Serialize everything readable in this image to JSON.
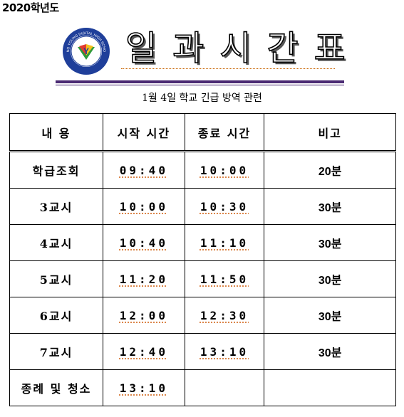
{
  "year": "2020학년도",
  "title": "일과시간표",
  "subtitle": "1월 4일 학교 긴급 방역 관련",
  "logo": {
    "icon": "school-emblem-icon",
    "text": "YANG YOUNG DIGITAL HIGH SCHOOL",
    "colors": [
      "#1f3f9a",
      "#e23b2e",
      "#2f9a3a",
      "#f4c21e"
    ]
  },
  "table": {
    "headers": [
      "내 용",
      "시작 시간",
      "종료 시간",
      "비고"
    ],
    "rows": [
      {
        "label": "학급조회",
        "start": "09:40",
        "end": "10:00",
        "note": "20분"
      },
      {
        "label": "3교시",
        "start": "10:00",
        "end": "10:30",
        "note": "30분"
      },
      {
        "label": "4교시",
        "start": "10:40",
        "end": "11:10",
        "note": "30분"
      },
      {
        "label": "5교시",
        "start": "11:20",
        "end": "11:50",
        "note": "30분"
      },
      {
        "label": "6교시",
        "start": "12:00",
        "end": "12:30",
        "note": "30분"
      },
      {
        "label": "7교시",
        "start": "12:40",
        "end": "13:10",
        "note": "30분"
      },
      {
        "label": "종례 및 청소",
        "start": "13:10",
        "end": "",
        "note": ""
      }
    ]
  },
  "colors": {
    "rule": "#4b2a73",
    "underline": "#d2691e"
  }
}
